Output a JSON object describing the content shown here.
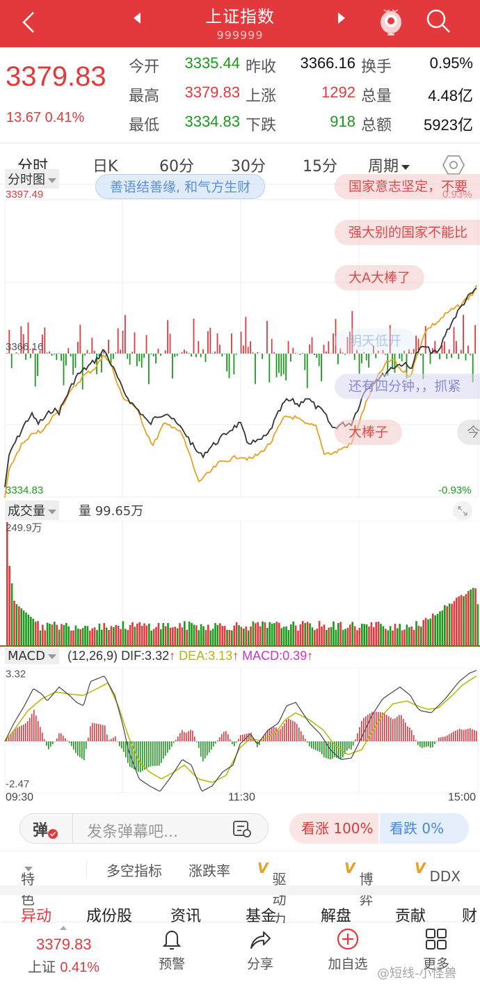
{
  "header": {
    "title": "上证指数",
    "code": "999999",
    "bg_color": "#e4393c"
  },
  "quote": {
    "price": "3379.83",
    "change": "13.67 0.41%",
    "rows": [
      {
        "l1": "今开",
        "v1": "3335.44",
        "l2": "昨收",
        "v2": "3366.16",
        "l3": "换手",
        "v3": "0.95%"
      },
      {
        "l1": "最高",
        "v1": "3379.83",
        "l2": "上涨",
        "v2": "1292",
        "l3": "总量",
        "v3": "4.48亿"
      },
      {
        "l1": "最低",
        "v1": "3334.83",
        "l2": "下跌",
        "v2": "918",
        "l3": "总额",
        "v3": "5923亿"
      }
    ]
  },
  "tabs": [
    {
      "label": "分时",
      "active": true
    },
    {
      "label": "日K"
    },
    {
      "label": "60分"
    },
    {
      "label": "30分"
    },
    {
      "label": "15分"
    },
    {
      "label": "周期"
    }
  ],
  "intraday": {
    "selector": "分时图",
    "high": "3397.49",
    "prev_close": "3366.16",
    "low": "3334.83",
    "pct_high": "0.93%",
    "pct_low": "-0.93%"
  },
  "danmaku": [
    {
      "text": "善语结善缘, 和气方生财",
      "style": "blue"
    },
    {
      "text": "国家意志坚定，不要",
      "style": "red"
    },
    {
      "text": "强大别的国家不能比",
      "style": "red"
    },
    {
      "text": "大A大棒了",
      "style": "red"
    },
    {
      "text": "明天低开",
      "style": "faint"
    },
    {
      "text": "还有四分钟，，抓紧",
      "style": "purple"
    },
    {
      "text": "大棒子",
      "style": "red"
    },
    {
      "text": "今",
      "style": "gray"
    }
  ],
  "volume": {
    "selector": "成交量",
    "current": "量 99.65万",
    "max": "249.9万"
  },
  "macd": {
    "selector": "MACD",
    "params": "(12,26,9)",
    "dif": "DIF:3.32",
    "dea": "DEA:3.13",
    "macd": "MACD:0.39",
    "max": "3.32",
    "min": "-2.47",
    "colors": {
      "dif": "#333333",
      "dea": "#b5b800",
      "macd": "#cc33cc"
    }
  },
  "time_axis": [
    "09:30",
    "11:30",
    "15:00"
  ],
  "danmu_bar": {
    "icon": "弹",
    "placeholder": "发条弹幕吧...",
    "bull": "看涨 100%",
    "bear": "看跌 0%"
  },
  "features": {
    "selector": "特色",
    "items": [
      "多空指标",
      "涨跌率",
      "驱动力",
      "博弈",
      "DDX"
    ]
  },
  "subtabs": [
    "异动",
    "成份股",
    "资讯",
    "基金",
    "解盘",
    "贡献",
    "财"
  ],
  "bottom": {
    "price": "3379.83",
    "name": "上证",
    "pct": "0.41%",
    "items": [
      "预警",
      "分享",
      "加自选",
      "更多"
    ]
  },
  "watermark": "@短线-小怪兽",
  "chart_data": [
    {
      "type": "line",
      "title": "分时图",
      "x": [
        "09:30",
        "11:30",
        "15:00"
      ],
      "ylim": [
        3334.83,
        3397.49
      ],
      "reference": 3366.16,
      "series": [
        {
          "name": "price",
          "color": "#333333"
        },
        {
          "name": "avg",
          "color": "#e8a020"
        }
      ]
    },
    {
      "type": "bar",
      "title": "成交量",
      "ylim": [
        0,
        2499000
      ],
      "current": 996500
    },
    {
      "type": "line",
      "title": "MACD(12,26,9)",
      "ylim": [
        -2.47,
        3.32
      ],
      "series": [
        {
          "name": "DIF",
          "value": 3.32
        },
        {
          "name": "DEA",
          "value": 3.13
        },
        {
          "name": "MACD",
          "value": 0.39
        }
      ]
    }
  ]
}
